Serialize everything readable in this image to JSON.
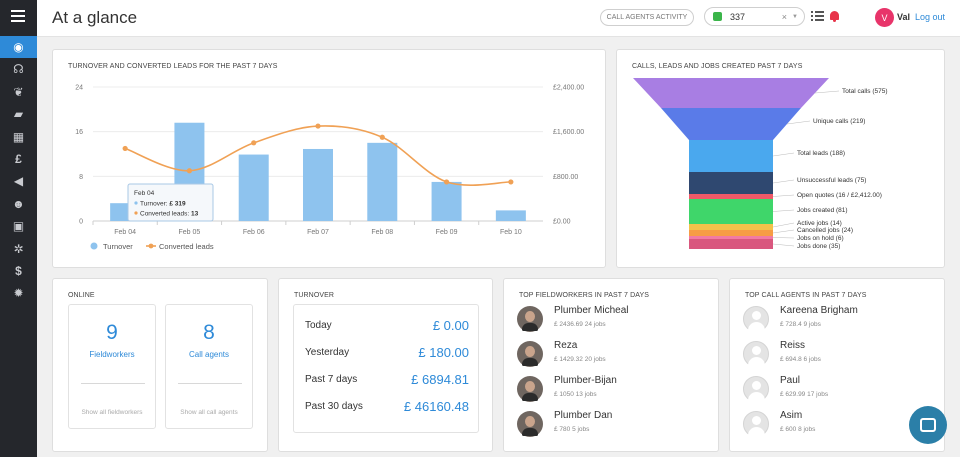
{
  "app": {
    "title": "At a glance"
  },
  "sidebar": {
    "items": [
      {
        "icon": "dashboard-icon",
        "glyph": "◉",
        "active": true
      },
      {
        "icon": "headset-icon",
        "glyph": "☊"
      },
      {
        "icon": "leaf-icon",
        "glyph": "❦"
      },
      {
        "icon": "briefcase-icon",
        "glyph": "▰"
      },
      {
        "icon": "table-icon",
        "glyph": "▦"
      },
      {
        "icon": "pound-icon",
        "glyph": "£"
      },
      {
        "icon": "megaphone-icon",
        "glyph": "◀"
      },
      {
        "icon": "users-icon",
        "glyph": "☻"
      },
      {
        "icon": "contact-book-icon",
        "glyph": "▣"
      },
      {
        "icon": "cogs-icon",
        "glyph": "✲"
      },
      {
        "icon": "dollar-icon",
        "glyph": "$"
      },
      {
        "icon": "gear-icon",
        "glyph": "✹"
      }
    ]
  },
  "header": {
    "call_agents_btn": "CALL AGENTS ACTIVITY",
    "phone_value": "337",
    "phone_clear": "×",
    "phone_caret": "▼",
    "avatar_letter": "V",
    "user_name": "Val",
    "logout": "Log out"
  },
  "turnover_chart": {
    "title": "TURNOVER AND CONVERTED LEADS FOR THE PAST 7 DAYS",
    "left_ticks": [
      "0",
      "8",
      "16",
      "24"
    ],
    "right_ticks": [
      "£0.00",
      "£800.00",
      "£1,600.00",
      "£2,400.00"
    ],
    "tooltip": {
      "date": "Feb 04",
      "turnover_label": "Turnover:",
      "turnover_value": "£ 319",
      "leads_label": "Converted leads:",
      "leads_value": "13"
    }
  },
  "funnel": {
    "title": "CALLS, LEADS AND JOBS CREATED PAST 7 DAYS"
  },
  "chart_data": [
    {
      "type": "bar",
      "title": "TURNOVER AND CONVERTED LEADS FOR THE PAST 7 DAYS",
      "categories": [
        "Feb 04",
        "Feb 05",
        "Feb 06",
        "Feb 07",
        "Feb 08",
        "Feb 09",
        "Feb 10"
      ],
      "series": [
        {
          "name": "Turnover",
          "kind": "bar",
          "axis": "right",
          "color": "#8ec3ee",
          "values": [
            319,
            1760,
            1190,
            1290,
            1400,
            700,
            190
          ]
        },
        {
          "name": "Converted leads",
          "kind": "line",
          "axis": "left",
          "color": "#f0a155",
          "values": [
            13,
            9,
            14,
            17,
            15,
            7,
            7
          ]
        }
      ],
      "ylim_left": [
        0,
        24
      ],
      "ylim_right": [
        0,
        2400
      ],
      "legend": "bottom-left",
      "grid": true
    },
    {
      "type": "funnel",
      "title": "CALLS, LEADS AND JOBS CREATED PAST 7 DAYS",
      "stages": [
        {
          "label": "Total calls (575)",
          "value": 575,
          "color": "#a87ee3"
        },
        {
          "label": "Unique calls (219)",
          "value": 219,
          "color": "#5a7be8"
        },
        {
          "label": "Total leads (188)",
          "value": 188,
          "color": "#4aa8ee"
        },
        {
          "label": "Unsuccessful leads (75)",
          "value": 75,
          "color": "#2f4870"
        },
        {
          "label": "Open quotes (16 / £2,412.00)",
          "value": 16,
          "color": "#ef5968"
        },
        {
          "label": "Jobs created (81)",
          "value": 81,
          "color": "#3fd66a"
        },
        {
          "label": "Active jobs (14)",
          "value": 14,
          "color": "#f3c24a"
        },
        {
          "label": "Cancelled jobs (24)",
          "value": 24,
          "color": "#f79c45"
        },
        {
          "label": "Jobs on hold (6)",
          "value": 6,
          "color": "#f27aa3"
        },
        {
          "label": "Jobs done (35)",
          "value": 35,
          "color": "#d9577e"
        }
      ]
    }
  ],
  "online": {
    "title": "ONLINE",
    "fieldworkers": {
      "count": "9",
      "label": "Fieldworkers",
      "link": "Show all fieldworkers"
    },
    "call_agents": {
      "count": "8",
      "label": "Call agents",
      "link": "Show all call agents"
    }
  },
  "turnover": {
    "title": "TURNOVER",
    "rows": [
      {
        "label": "Today",
        "value": "£ 0.00"
      },
      {
        "label": "Yesterday",
        "value": "£ 180.00"
      },
      {
        "label": "Past 7 days",
        "value": "£ 6894.81"
      },
      {
        "label": "Past 30 days",
        "value": "£ 46160.48"
      }
    ]
  },
  "top_fieldworkers": {
    "title": "TOP FIELDWORKERS IN PAST 7 DAYS",
    "people": [
      {
        "name": "Plumber Micheal",
        "detail": "£ 2436.69 24 jobs"
      },
      {
        "name": "Reza",
        "detail": "£ 1429.32 20 jobs"
      },
      {
        "name": "Plumber-Bijan",
        "detail": "£ 1050 13 jobs"
      },
      {
        "name": "Plumber Dan",
        "detail": "£ 780 5 jobs"
      }
    ]
  },
  "top_call_agents": {
    "title": "TOP CALL AGENTS IN PAST 7 DAYS",
    "people": [
      {
        "name": "Kareena Brigham",
        "detail": "£ 728.4 9 jobs"
      },
      {
        "name": "Reiss",
        "detail": "£ 694.8 6 jobs"
      },
      {
        "name": "Paul",
        "detail": "£ 629.99 17 jobs"
      },
      {
        "name": "Asim",
        "detail": "£ 600 8 jobs"
      }
    ]
  }
}
